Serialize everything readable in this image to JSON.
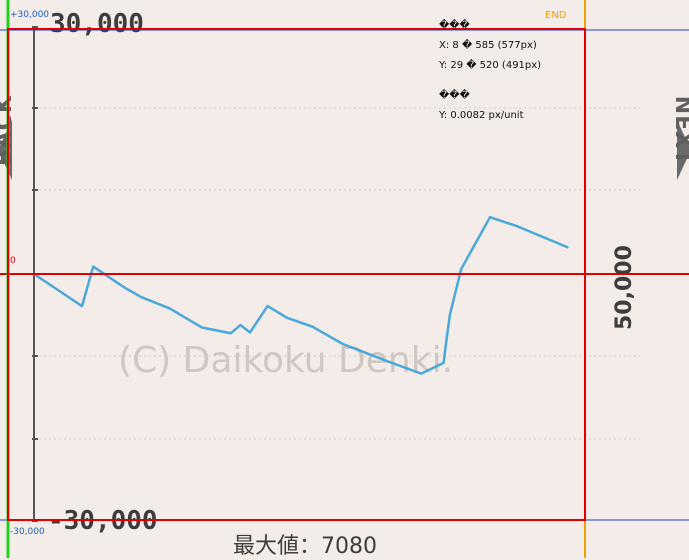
{
  "nav": {
    "back_label": "BACK",
    "next_label": "NEXT"
  },
  "overlay": {
    "top_ref": "+30,000",
    "bottom_ref": "-30,000",
    "zero_ref": "0",
    "end_label": "END",
    "measure_title": "���",
    "measure_x": "X: 8 � 585 (577px)",
    "measure_y": "Y: 29 � 520 (491px)",
    "scale_title": "���",
    "scale_y": "Y: 0.0082 px/unit"
  },
  "graph": {
    "top_value": "30,000",
    "bottom_value": "-30,000",
    "side_value": "50,000",
    "max_label": "最大値：7080",
    "watermark": "(C) Daikoku Denki."
  },
  "colors": {
    "background": "#f3ece8",
    "line": "#4aa8d8",
    "axis": "#555555",
    "grid": "#cfc8c5",
    "overlay_red": "#e00000",
    "overlay_blue": "#2040d0",
    "overlay_green": "#20d020",
    "overlay_orange": "#f0a000",
    "overlay_purple": "#a020a0"
  },
  "chart_data": {
    "type": "line",
    "ylim": [
      -30000,
      30000
    ],
    "x": [
      0,
      30,
      37,
      57,
      67,
      85,
      105,
      123,
      129,
      135,
      146,
      158,
      174,
      193,
      221,
      242,
      256,
      258,
      260,
      267,
      285,
      302,
      313,
      334
    ],
    "values": [
      0,
      -3900,
      900,
      -1700,
      -2800,
      -4200,
      -6500,
      -7200,
      -6200,
      -7100,
      -3900,
      -5300,
      -6400,
      -8500,
      -10600,
      -12100,
      -10800,
      -7700,
      -4900,
      600,
      6900,
      5800,
      4900,
      3200
    ]
  }
}
